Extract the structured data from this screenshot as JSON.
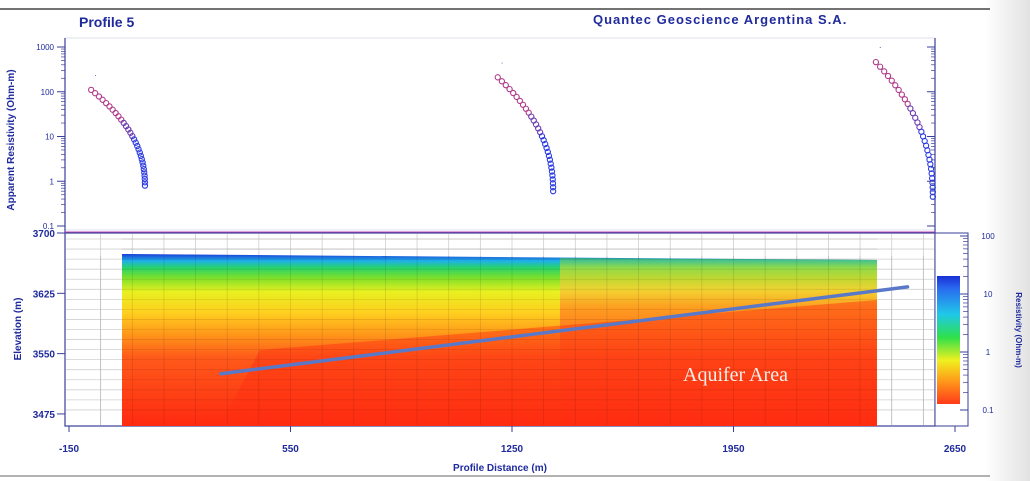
{
  "header": {
    "title": "Profile 5",
    "company": "Quantec Geoscience Argentina S.A."
  },
  "chart_data": [
    {
      "type": "scatter",
      "panel": "apparent-resistivity",
      "ylabel": "Apparent Resistivity (Ohm-m)",
      "yscale": "log",
      "ylim": [
        0.1,
        1000
      ],
      "y_tick_labels": [
        "1000",
        "100",
        "10",
        "1",
        "0.1"
      ],
      "series": [
        {
          "x_start": -80,
          "x_end": 90,
          "rho_start": 110,
          "rho_end": 0.8
        },
        {
          "x_start": 1205,
          "x_end": 1380,
          "rho_start": 210,
          "rho_end": 0.6
        },
        {
          "x_start": 2400,
          "x_end": 2580,
          "rho_start": 460,
          "rho_end": 0.45
        }
      ]
    },
    {
      "type": "heatmap",
      "panel": "resistivity-section",
      "xlabel": "Profile Distance (m)",
      "ylabel": "Elevation (m)",
      "xlim": [
        -150,
        2650
      ],
      "ylim": [
        3460,
        3700
      ],
      "x_tick_labels": [
        "-150",
        "550",
        "1250",
        "1950",
        "2650"
      ],
      "y_tick_labels": [
        "3700",
        "3625",
        "3550",
        "3475"
      ],
      "section_extent_x": [
        0,
        2500
      ],
      "section_bands": [
        {
          "elevation": 3680,
          "resistivity": 20
        },
        {
          "elevation": 3672,
          "resistivity": 8
        },
        {
          "elevation": 3662,
          "resistivity": 4
        },
        {
          "elevation": 3645,
          "resistivity": 2
        },
        {
          "elevation": 3630,
          "resistivity": 0.7
        },
        {
          "elevation": 3610,
          "resistivity": 0.35
        },
        {
          "elevation": 3590,
          "resistivity": 0.22
        },
        {
          "elevation": 3560,
          "resistivity": 0.14
        },
        {
          "elevation": 3480,
          "resistivity": 0.12
        }
      ],
      "aquifer_line": [
        [
          330,
          3525
        ],
        [
          2500,
          3633
        ]
      ],
      "annotation": "Aquifer Area"
    },
    {
      "type": "colorbar",
      "label": "Resistivity (Ohm-m)",
      "tick_labels": [
        "100",
        "10",
        "1",
        "0.1"
      ],
      "colors": [
        "#1a2fd6",
        "#2a6cf0",
        "#20c8e8",
        "#2ee04a",
        "#f0f020",
        "#ff9a1a",
        "#ff3a1a"
      ]
    }
  ]
}
